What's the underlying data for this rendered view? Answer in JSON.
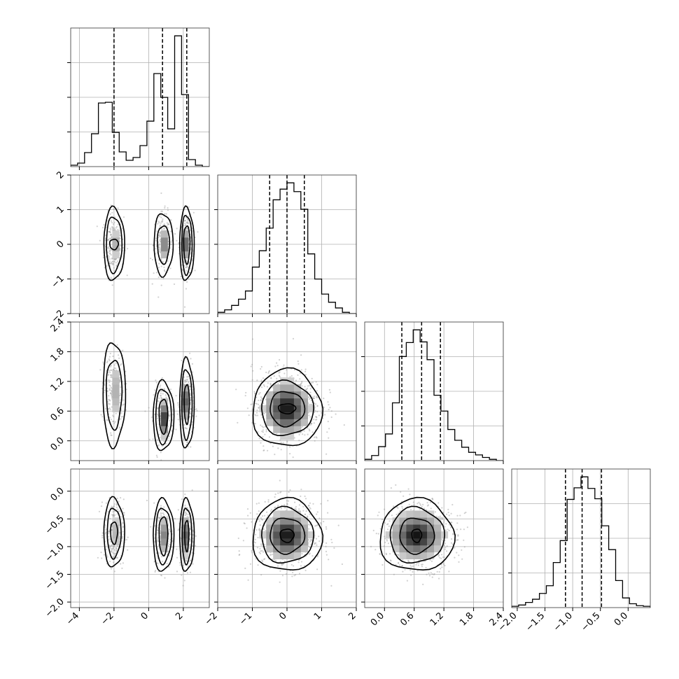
{
  "chart_data": {
    "type": "corner",
    "parameters": [
      {
        "range": [
          -4.5,
          3.5
        ],
        "ticks": [
          -4,
          -2,
          0,
          2
        ],
        "tick_labels": [
          "−4",
          "−2",
          "0",
          "2"
        ],
        "quantiles": [
          -2.0,
          0.8,
          2.2
        ],
        "histogram": {
          "edges": [
            -4.5,
            -4.1,
            -3.7,
            -3.3,
            -2.9,
            -2.5,
            -2.1,
            -1.7,
            -1.3,
            -0.9,
            -0.5,
            -0.1,
            0.3,
            0.7,
            1.1,
            1.5,
            1.9,
            2.3,
            2.7,
            3.1,
            3.5
          ],
          "counts": [
            2,
            5,
            20,
            47,
            91,
            92,
            49,
            21,
            9,
            13,
            30,
            65,
            133,
            99,
            54,
            187,
            103,
            10,
            2,
            0
          ]
        }
      },
      {
        "range": [
          -2.0,
          2.0
        ],
        "ticks": [
          -2,
          -1,
          0,
          1,
          2
        ],
        "tick_labels": [
          "−2",
          "−1",
          "0",
          "1",
          "2"
        ],
        "quantiles": [
          -0.5,
          0.0,
          0.5
        ],
        "histogram": {
          "edges": [
            -2.0,
            -1.8,
            -1.6,
            -1.4,
            -1.2,
            -1.0,
            -0.8,
            -0.6,
            -0.4,
            -0.2,
            0.0,
            0.2,
            0.4,
            0.6,
            0.8,
            1.0,
            1.2,
            1.4,
            1.6,
            1.8,
            2.0
          ],
          "counts": [
            2,
            6,
            13,
            23,
            36,
            74,
            100,
            136,
            181,
            198,
            208,
            194,
            166,
            95,
            55,
            31,
            18,
            9,
            2,
            0
          ]
        }
      },
      {
        "range": [
          -0.4,
          2.4
        ],
        "ticks": [
          0.0,
          0.6,
          1.2,
          1.8,
          2.4
        ],
        "tick_labels": [
          "0.0",
          "0.6",
          "1.2",
          "1.8",
          "2.4"
        ],
        "quantiles": [
          0.35,
          0.75,
          1.13
        ],
        "histogram": {
          "edges": [
            -0.4,
            -0.26,
            -0.12,
            0.02,
            0.16,
            0.3,
            0.44,
            0.58,
            0.72,
            0.86,
            1.0,
            1.14,
            1.28,
            1.42,
            1.56,
            1.7,
            1.84,
            1.98,
            2.12,
            2.26,
            2.4
          ],
          "counts": [
            2,
            8,
            22,
            42,
            91,
            164,
            186,
            206,
            187,
            159,
            103,
            78,
            49,
            32,
            21,
            13,
            9,
            5,
            2,
            0
          ]
        }
      },
      {
        "range": [
          -2.1,
          0.4
        ],
        "ticks": [
          -2.0,
          -1.5,
          -1.0,
          -0.5,
          0.0
        ],
        "tick_labels": [
          "−2.0",
          "−1.5",
          "−1.0",
          "−0.5",
          "0.0"
        ],
        "quantiles": [
          -1.13,
          -0.83,
          -0.48
        ],
        "histogram": {
          "edges": [
            -2.1,
            -1.975,
            -1.85,
            -1.725,
            -1.6,
            -1.475,
            -1.35,
            -1.225,
            -1.1,
            -0.975,
            -0.85,
            -0.725,
            -0.6,
            -0.475,
            -0.35,
            -0.225,
            -0.1,
            0.025,
            0.15,
            0.275,
            0.4
          ],
          "counts": [
            2,
            4,
            8,
            13,
            22,
            34,
            70,
            104,
            168,
            186,
            203,
            185,
            169,
            127,
            90,
            42,
            15,
            6,
            3,
            2
          ]
        }
      }
    ],
    "pairs": [
      {
        "row": 1,
        "col": 0,
        "modes": [
          {
            "cx": -2.0,
            "cy": 0.0,
            "sx": 0.28,
            "sy": 0.45,
            "w": 0.36
          },
          {
            "cx": 0.85,
            "cy": 0.0,
            "sx": 0.28,
            "sy": 0.45,
            "w": 0.3
          },
          {
            "cx": 2.2,
            "cy": 0.0,
            "sx": 0.2,
            "sy": 0.45,
            "w": 0.34
          }
        ],
        "density_peaks": [
          {
            "cx": -2.0,
            "cy": 0.0,
            "sx": 0.16,
            "sy": 0.25,
            "v": 0.35
          },
          {
            "cx": 0.85,
            "cy": 0.0,
            "sx": 0.16,
            "sy": 0.25,
            "v": 0.5
          },
          {
            "cx": 2.2,
            "cy": 0.0,
            "sx": 0.12,
            "sy": 0.25,
            "v": 0.9
          }
        ],
        "contours": [
          {
            "cx": -2.0,
            "cy": 0.0,
            "radii": [
              [
                0.25,
                0.15
              ],
              [
                0.45,
                0.8
              ],
              [
                0.6,
                1.05
              ]
            ]
          },
          {
            "cx": 0.85,
            "cy": 0.0,
            "radii": [
              [
                0.35,
                0.55
              ],
              [
                0.55,
                0.9
              ]
            ]
          },
          {
            "cx": 2.2,
            "cy": 0.0,
            "radii": [
              [
                0.18,
                0.55
              ],
              [
                0.3,
                0.85
              ],
              [
                0.42,
                1.05
              ]
            ]
          }
        ]
      },
      {
        "row": 2,
        "col": 0,
        "modes": [
          {
            "cx": -2.0,
            "cy": 1.0,
            "sx": 0.3,
            "sy": 0.4,
            "w": 0.36
          },
          {
            "cx": 0.85,
            "cy": 0.55,
            "sx": 0.28,
            "sy": 0.3,
            "w": 0.3
          },
          {
            "cx": 2.2,
            "cy": 0.75,
            "sx": 0.2,
            "sy": 0.35,
            "w": 0.34
          }
        ],
        "density_peaks": [
          {
            "cx": -2.0,
            "cy": 1.0,
            "sx": 0.2,
            "sy": 0.35,
            "v": 0.3
          },
          {
            "cx": 0.85,
            "cy": 0.45,
            "sx": 0.16,
            "sy": 0.2,
            "v": 0.85
          },
          {
            "cx": 2.2,
            "cy": 0.8,
            "sx": 0.12,
            "sy": 0.22,
            "v": 0.9
          }
        ],
        "contours": [
          {
            "cx": -2.0,
            "cy": 0.95,
            "radii": [
              [
                0.45,
                0.7
              ],
              [
                0.65,
                1.05
              ]
            ]
          },
          {
            "cx": 0.85,
            "cy": 0.5,
            "radii": [
              [
                0.25,
                0.35
              ],
              [
                0.45,
                0.55
              ],
              [
                0.6,
                0.7
              ]
            ]
          },
          {
            "cx": 2.2,
            "cy": 0.75,
            "radii": [
              [
                0.15,
                0.4
              ],
              [
                0.3,
                0.7
              ],
              [
                0.42,
                0.9
              ]
            ]
          }
        ]
      },
      {
        "row": 3,
        "col": 0,
        "modes": [
          {
            "cx": -2.0,
            "cy": -0.75,
            "sx": 0.28,
            "sy": 0.3,
            "w": 0.36
          },
          {
            "cx": 0.85,
            "cy": -0.8,
            "sx": 0.28,
            "sy": 0.3,
            "w": 0.3
          },
          {
            "cx": 2.2,
            "cy": -0.8,
            "sx": 0.2,
            "sy": 0.3,
            "w": 0.34
          }
        ],
        "density_peaks": [
          {
            "cx": -2.0,
            "cy": -0.75,
            "sx": 0.16,
            "sy": 0.2,
            "v": 0.3
          },
          {
            "cx": 0.85,
            "cy": -0.8,
            "sx": 0.16,
            "sy": 0.2,
            "v": 0.5
          },
          {
            "cx": 2.2,
            "cy": -0.8,
            "sx": 0.12,
            "sy": 0.2,
            "v": 0.9
          }
        ],
        "contours": [
          {
            "cx": -2.0,
            "cy": -0.75,
            "radii": [
              [
                0.2,
                0.2
              ],
              [
                0.4,
                0.45
              ],
              [
                0.6,
                0.62
              ]
            ]
          },
          {
            "cx": 0.85,
            "cy": -0.8,
            "radii": [
              [
                0.25,
                0.35
              ],
              [
                0.45,
                0.5
              ],
              [
                0.6,
                0.65
              ]
            ]
          },
          {
            "cx": 2.2,
            "cy": -0.8,
            "radii": [
              [
                0.12,
                0.28
              ],
              [
                0.28,
                0.5
              ],
              [
                0.42,
                0.65
              ]
            ]
          }
        ]
      },
      {
        "row": 2,
        "col": 1,
        "modes": [
          {
            "cx": 0.0,
            "cy": 0.7,
            "sx": 0.5,
            "sy": 0.38,
            "w": 1.0
          }
        ],
        "density_peaks": [
          {
            "cx": 0.0,
            "cy": 0.65,
            "sx": 0.35,
            "sy": 0.28,
            "v": 1.0
          }
        ],
        "contours": [
          {
            "cx": 0.0,
            "cy": 0.65,
            "radii": [
              [
                0.25,
                0.1
              ],
              [
                0.5,
                0.35
              ],
              [
                0.75,
                0.55
              ],
              [
                1.0,
                0.78
              ]
            ]
          }
        ]
      },
      {
        "row": 3,
        "col": 1,
        "modes": [
          {
            "cx": 0.0,
            "cy": -0.8,
            "sx": 0.5,
            "sy": 0.3,
            "w": 1.0
          }
        ],
        "density_peaks": [
          {
            "cx": 0.0,
            "cy": -0.8,
            "sx": 0.35,
            "sy": 0.22,
            "v": 1.0
          }
        ],
        "contours": [
          {
            "cx": 0.0,
            "cy": -0.8,
            "radii": [
              [
                0.2,
                0.12
              ],
              [
                0.5,
                0.32
              ],
              [
                0.75,
                0.5
              ],
              [
                1.0,
                0.65
              ]
            ]
          }
        ]
      },
      {
        "row": 3,
        "col": 2,
        "modes": [
          {
            "cx": 0.7,
            "cy": -0.8,
            "sx": 0.38,
            "sy": 0.3,
            "w": 1.0
          }
        ],
        "density_peaks": [
          {
            "cx": 0.65,
            "cy": -0.8,
            "sx": 0.28,
            "sy": 0.22,
            "v": 1.0
          }
        ],
        "contours": [
          {
            "cx": 0.65,
            "cy": -0.8,
            "radii": [
              [
                0.1,
                0.12
              ],
              [
                0.35,
                0.32
              ],
              [
                0.55,
                0.5
              ],
              [
                0.75,
                0.65
              ]
            ]
          }
        ]
      }
    ]
  }
}
